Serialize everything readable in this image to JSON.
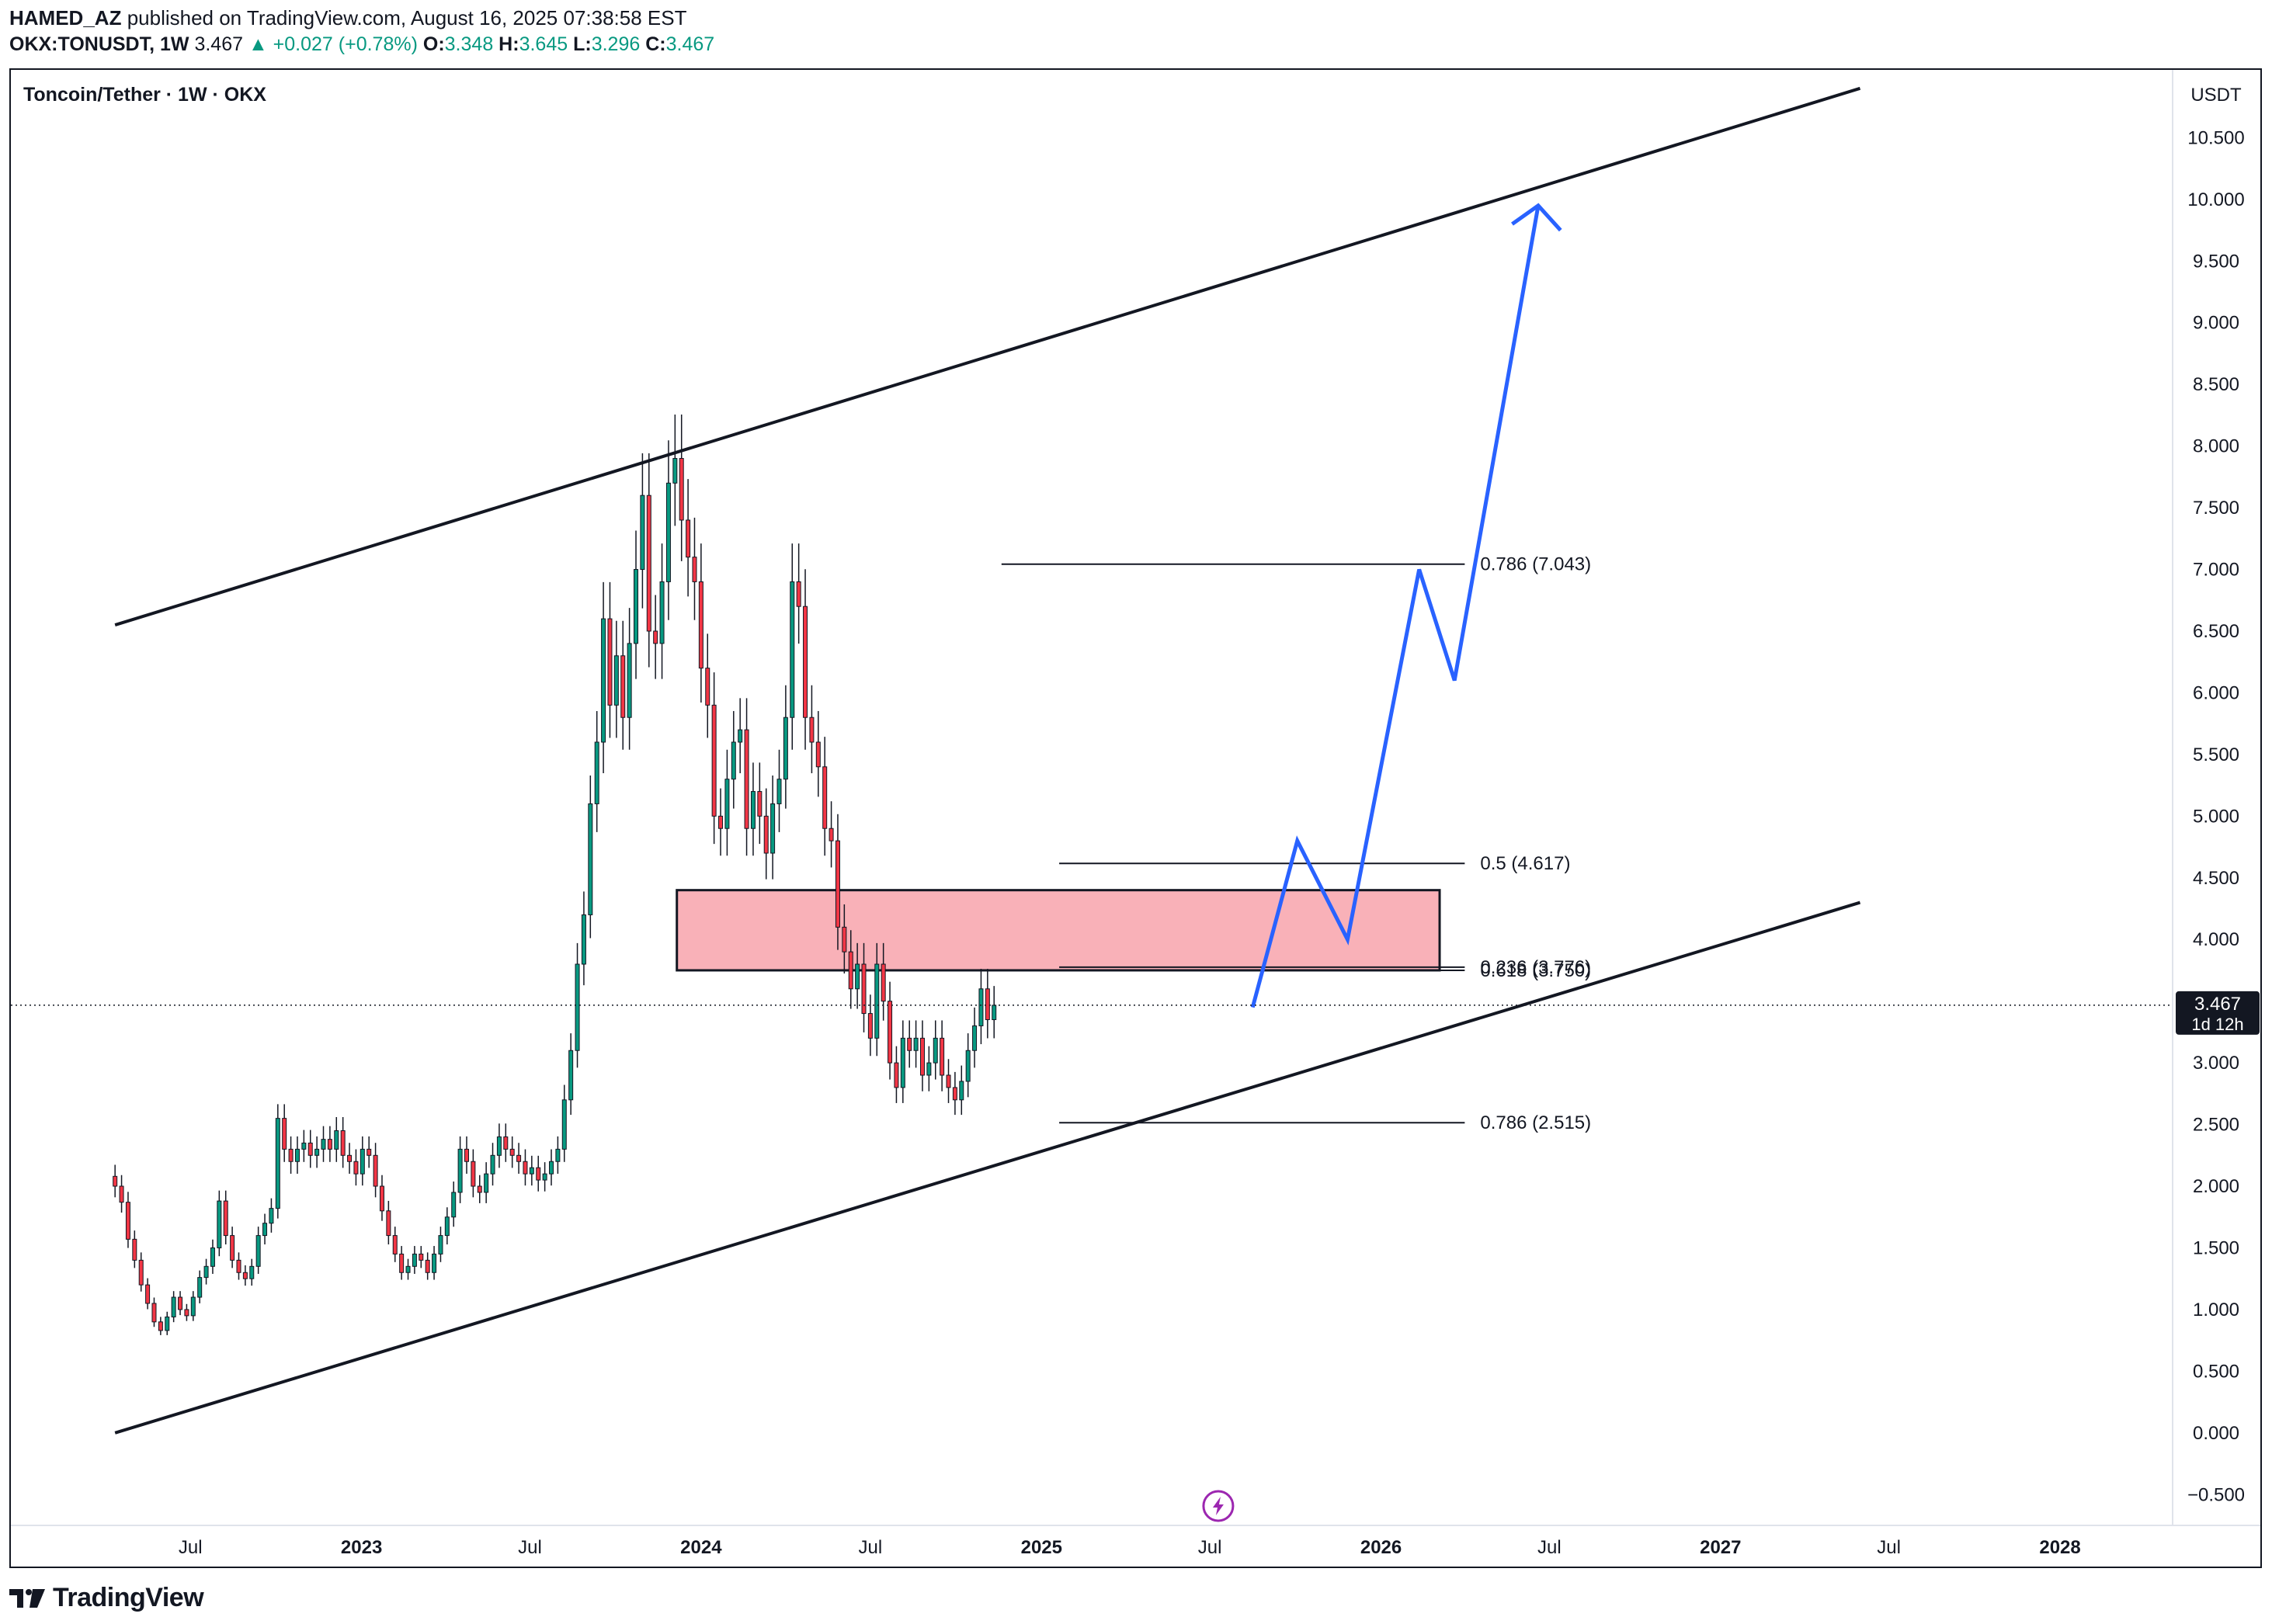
{
  "header": {
    "author": "HAMED_AZ",
    "published_text": "published on TradingView.com, August 16, 2025 07:38:58 EST",
    "symbol": "OKX:TONUSDT, 1W",
    "last": "3.467",
    "change_arrow": "▲",
    "change": "+0.027 (+0.78%)",
    "o_label": "O:",
    "o": "3.348",
    "h_label": "H:",
    "h": "3.645",
    "l_label": "L:",
    "l": "3.296",
    "c_label": "C:",
    "c": "3.467"
  },
  "chart_title": "Toncoin/Tether · 1W · OKX",
  "currency": "USDT",
  "last_price_label": "3.467",
  "countdown": "1d 12h",
  "footer": {
    "brand": "TradingView",
    "logo_icon": "tradingview-logo-icon"
  },
  "colors": {
    "up": "#089981",
    "down": "#f23645",
    "projection": "#2962ff",
    "zone_fill": "#f9b1b8",
    "zone_border": "#131722",
    "flash_icon": "#9c27b0"
  },
  "chart_data": {
    "type": "candlestick",
    "title": "Toncoin/Tether · 1W · OKX",
    "y_unit": "USDT",
    "y_ticks": [
      "10.500",
      "10.000",
      "9.500",
      "9.000",
      "8.500",
      "8.000",
      "7.500",
      "7.000",
      "6.500",
      "6.000",
      "5.500",
      "5.000",
      "4.500",
      "4.000",
      "3.500",
      "3.000",
      "2.500",
      "2.000",
      "1.500",
      "1.000",
      "0.500",
      "0.000",
      "−0.500"
    ],
    "y_tick_values": [
      10.5,
      10,
      9.5,
      9,
      8.5,
      8,
      7.5,
      7,
      6.5,
      6,
      5.5,
      5,
      4.5,
      4,
      3.5,
      3,
      2.5,
      2,
      1.5,
      1,
      0.5,
      0,
      -0.5
    ],
    "ylim": [
      -0.75,
      11.05
    ],
    "x_ticks": [
      {
        "label": "Jul",
        "date": "2022-07-01",
        "bold": false
      },
      {
        "label": "2023",
        "date": "2023-01-01",
        "bold": true
      },
      {
        "label": "Jul",
        "date": "2023-07-01",
        "bold": false
      },
      {
        "label": "2024",
        "date": "2024-01-01",
        "bold": true
      },
      {
        "label": "Jul",
        "date": "2024-07-01",
        "bold": false
      },
      {
        "label": "2025",
        "date": "2025-01-01",
        "bold": true
      },
      {
        "label": "Jul",
        "date": "2025-07-01",
        "bold": false
      },
      {
        "label": "2026",
        "date": "2026-01-01",
        "bold": true
      },
      {
        "label": "Jul",
        "date": "2026-07-01",
        "bold": false
      },
      {
        "label": "2027",
        "date": "2027-01-01",
        "bold": true
      },
      {
        "label": "Jul",
        "date": "2027-07-01",
        "bold": false
      },
      {
        "label": "2028",
        "date": "2028-01-01",
        "bold": true
      }
    ],
    "xlim": [
      "2021-12-20",
      "2028-05-01"
    ],
    "series": [
      {
        "start": "2022-04-11",
        "weekly_close": [
          2.0,
          1.87,
          1.57,
          1.4,
          1.2,
          1.05,
          0.9,
          0.83,
          0.94,
          1.1,
          1.0,
          0.95,
          1.1,
          1.26,
          1.35,
          1.5,
          1.88,
          1.6,
          1.4,
          1.3,
          1.25,
          1.35,
          1.6,
          1.7,
          1.82,
          2.55,
          2.3,
          2.2,
          2.3,
          2.35,
          2.25,
          2.3,
          2.38,
          2.3,
          2.45,
          2.25,
          2.2,
          2.1,
          2.3,
          2.25,
          2.0,
          1.8,
          1.6,
          1.45,
          1.3,
          1.35,
          1.45,
          1.4,
          1.3,
          1.45,
          1.6,
          1.75,
          1.95,
          2.3,
          2.2,
          2.0,
          1.95,
          2.1,
          2.25,
          2.4,
          2.3,
          2.25,
          2.2,
          2.1,
          2.15,
          2.05,
          2.1,
          2.2,
          2.3,
          2.7,
          3.1,
          3.8,
          4.2,
          5.1,
          5.6,
          6.6,
          5.9,
          6.3,
          5.8,
          6.4,
          7.0,
          7.6,
          6.5,
          6.4,
          6.9,
          7.7,
          7.9,
          7.4,
          7.1,
          6.9,
          6.2,
          5.9,
          5.0,
          4.9,
          5.3,
          5.6,
          5.7,
          4.9,
          5.2,
          5.0,
          4.7,
          5.1,
          5.3,
          5.8,
          6.9,
          6.7,
          5.8,
          5.6,
          5.4,
          4.9,
          4.8,
          4.1,
          3.9,
          3.6,
          3.8,
          3.4,
          3.2,
          3.8,
          3.5,
          3.0,
          2.8,
          3.2,
          3.1,
          3.2,
          2.9,
          3.0,
          3.2,
          2.9,
          2.8,
          2.7,
          2.85,
          3.1,
          3.3,
          3.6,
          3.35,
          3.467
        ]
      }
    ],
    "last_price": 3.467,
    "channel_upper": {
      "from": {
        "date": "2022-04-11",
        "value": 6.55
      },
      "to": {
        "date": "2027-05-31",
        "value": 10.9
      }
    },
    "channel_lower": {
      "from": {
        "date": "2022-04-11",
        "value": 0.0
      },
      "to": {
        "date": "2027-05-31",
        "value": 4.3
      }
    },
    "demand_zone": {
      "from_date": "2023-12-06",
      "to_date": "2026-03-05",
      "low": 3.75,
      "high": 4.4
    },
    "fib_levels": [
      {
        "label": "0.786 (7.043)",
        "value": 7.043,
        "from_date": "2024-11-19"
      },
      {
        "label": "0.5 (4.617)",
        "value": 4.617,
        "from_date": "2025-01-20"
      },
      {
        "label": "0.236 (3.776)",
        "value": 3.776,
        "from_date": "2025-01-20"
      },
      {
        "label": "0.618 (3.750)",
        "value": 3.75,
        "from_date": "2025-01-20"
      },
      {
        "label": "0.786 (2.515)",
        "value": 2.515,
        "from_date": "2025-01-20"
      }
    ],
    "fib_end_date": "2026-04-01",
    "projection_path": [
      {
        "date": "2025-08-16",
        "value": 3.45
      },
      {
        "date": "2025-10-03",
        "value": 4.8
      },
      {
        "date": "2025-11-26",
        "value": 4.0
      },
      {
        "date": "2026-02-11",
        "value": 7.0
      },
      {
        "date": "2026-03-21",
        "value": 6.1
      },
      {
        "date": "2026-06-19",
        "value": 9.95
      }
    ],
    "projection_arrowhead": [
      {
        "date": "2026-05-22",
        "value": 9.8
      },
      {
        "date": "2026-06-19",
        "value": 9.95
      },
      {
        "date": "2026-07-13",
        "value": 9.75
      }
    ],
    "flash_marker_date": "2025-07-10",
    "grid": false,
    "legend": "none"
  }
}
